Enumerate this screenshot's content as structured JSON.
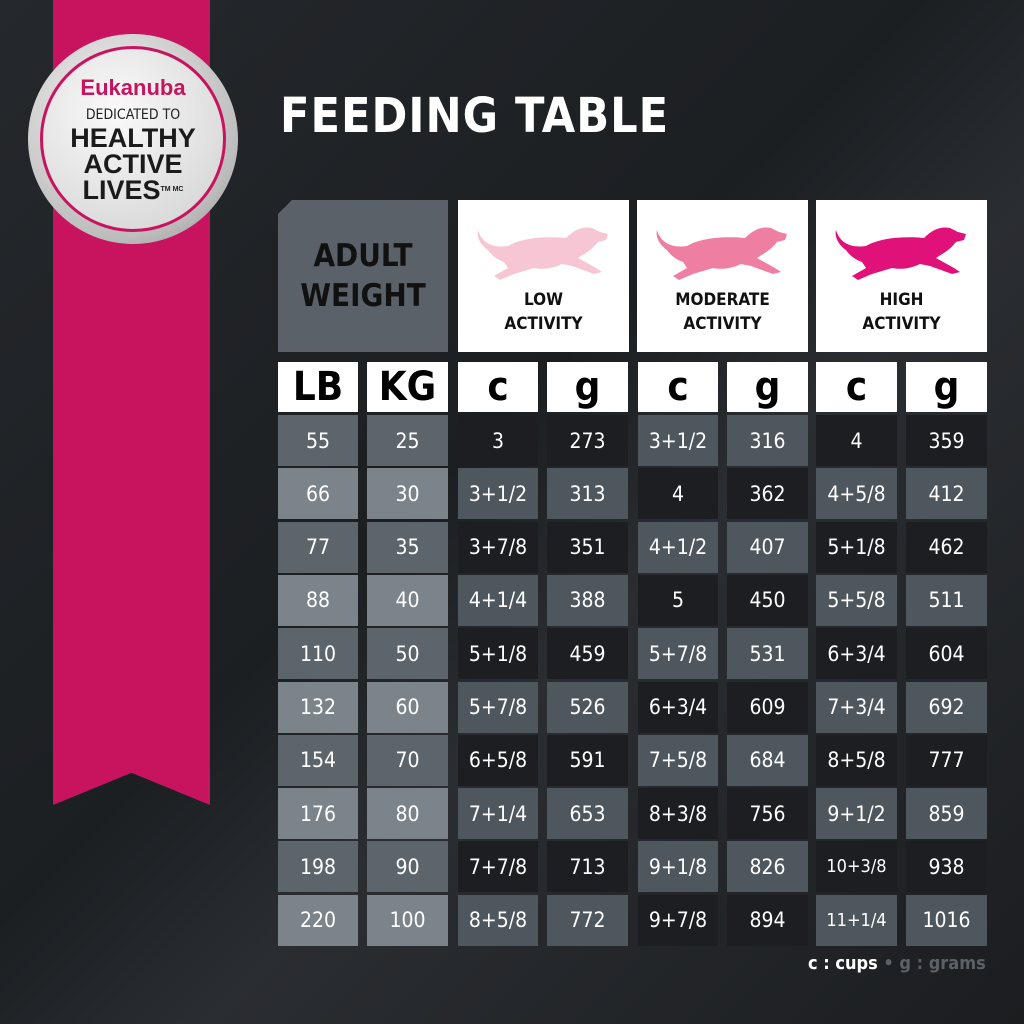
{
  "badge": {
    "brand": "Eukanuba",
    "line1": "DEDICATED TO",
    "line2": "HEALTHY",
    "line3": "ACTIVE",
    "line4": "LIVES",
    "tm": "TM MC"
  },
  "title": "FEEDING TABLE",
  "header": {
    "weight_line1": "ADULT",
    "weight_line2": "WEIGHT",
    "activities": [
      {
        "line1": "LOW",
        "line2": "ACTIVITY",
        "icon": "running-dog-icon",
        "color": "#f7c6d5"
      },
      {
        "line1": "MODERATE",
        "line2": "ACTIVITY",
        "icon": "running-dog-icon",
        "color": "#ee7fa3"
      },
      {
        "line1": "HIGH",
        "line2": "ACTIVITY",
        "icon": "running-dog-icon",
        "color": "#e0127a"
      }
    ]
  },
  "units": [
    "LB",
    "KG",
    "c",
    "g",
    "c",
    "g",
    "c",
    "g"
  ],
  "rows": [
    [
      "55",
      "25",
      "3",
      "273",
      "3+1/2",
      "316",
      "4",
      "359"
    ],
    [
      "66",
      "30",
      "3+1/2",
      "313",
      "4",
      "362",
      "4+5/8",
      "412"
    ],
    [
      "77",
      "35",
      "3+7/8",
      "351",
      "4+1/2",
      "407",
      "5+1/8",
      "462"
    ],
    [
      "88",
      "40",
      "4+1/4",
      "388",
      "5",
      "450",
      "5+5/8",
      "511"
    ],
    [
      "110",
      "50",
      "5+1/8",
      "459",
      "5+7/8",
      "531",
      "6+3/4",
      "604"
    ],
    [
      "132",
      "60",
      "5+7/8",
      "526",
      "6+3/4",
      "609",
      "7+3/4",
      "692"
    ],
    [
      "154",
      "70",
      "6+5/8",
      "591",
      "7+5/8",
      "684",
      "8+5/8",
      "777"
    ],
    [
      "176",
      "80",
      "7+1/4",
      "653",
      "8+3/8",
      "756",
      "9+1/2",
      "859"
    ],
    [
      "198",
      "90",
      "7+7/8",
      "713",
      "9+1/8",
      "826",
      "10+3/8",
      "938"
    ],
    [
      "220",
      "100",
      "8+5/8",
      "772",
      "9+7/8",
      "894",
      "11+1/4",
      "1016"
    ]
  ],
  "legend": {
    "cups": "c : cups",
    "sep": "•",
    "grams": "g : grams"
  },
  "colors": {
    "brand_pink": "#c8145f",
    "dark_cell": "#1c1e21",
    "gray_cell": "#4f575e",
    "weight_dark": "#5d656c",
    "weight_light": "#7b848b"
  }
}
